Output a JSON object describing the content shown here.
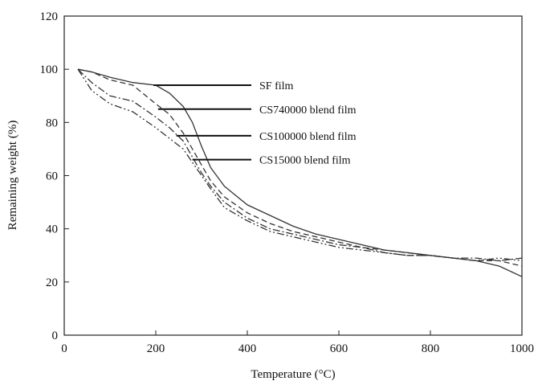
{
  "chart_data": {
    "type": "line",
    "title": "",
    "xlabel": "Temperature (°C)",
    "ylabel": "Remaining weight (%)",
    "xlim": [
      0,
      1000
    ],
    "ylim": [
      0,
      120
    ],
    "xticks": [
      0,
      200,
      400,
      600,
      800,
      1000
    ],
    "yticks": [
      0,
      20,
      40,
      60,
      80,
      100,
      120
    ],
    "grid": false,
    "legend": "annotations with leader lines pointing to curves",
    "series": [
      {
        "name": "SF film",
        "style": "solid",
        "x": [
          30,
          60,
          100,
          150,
          200,
          230,
          260,
          280,
          300,
          320,
          350,
          400,
          450,
          500,
          550,
          600,
          650,
          700,
          750,
          800,
          850,
          900,
          950,
          1000
        ],
        "y": [
          100,
          99,
          97,
          95,
          94,
          91,
          86,
          80,
          71,
          63,
          56,
          49,
          45,
          41,
          38,
          36,
          34,
          32,
          31,
          30,
          29,
          28,
          26,
          22
        ]
      },
      {
        "name": "CS740000 blend film",
        "style": "dashed",
        "x": [
          30,
          60,
          100,
          150,
          200,
          230,
          260,
          280,
          300,
          320,
          350,
          400,
          450,
          500,
          550,
          600,
          650,
          700,
          750,
          800,
          850,
          900,
          950,
          1000
        ],
        "y": [
          100,
          99,
          96,
          94,
          87,
          83,
          76,
          70,
          64,
          58,
          52,
          46,
          42,
          39,
          37,
          35,
          33,
          32,
          31,
          30,
          29,
          28,
          28,
          26
        ]
      },
      {
        "name": "CS100000 blend film",
        "style": "dash-dot",
        "x": [
          30,
          60,
          100,
          150,
          200,
          230,
          260,
          280,
          300,
          320,
          350,
          400,
          450,
          500,
          550,
          600,
          650,
          700,
          750,
          800,
          850,
          900,
          950,
          1000
        ],
        "y": [
          100,
          95,
          90,
          88,
          82,
          78,
          73,
          67,
          61,
          56,
          50,
          44,
          40,
          38,
          36,
          34,
          33,
          31,
          30,
          30,
          29,
          29,
          28,
          29
        ]
      },
      {
        "name": "CS15000 blend film",
        "style": "dash-dot-dot",
        "x": [
          30,
          60,
          100,
          150,
          200,
          230,
          260,
          280,
          300,
          320,
          350,
          400,
          450,
          500,
          550,
          600,
          650,
          700,
          750,
          800,
          850,
          900,
          950,
          1000
        ],
        "y": [
          100,
          92,
          87,
          84,
          78,
          74,
          70,
          65,
          60,
          55,
          48,
          43,
          39,
          37,
          35,
          33,
          32,
          31,
          30,
          30,
          29,
          28,
          29,
          28
        ]
      }
    ],
    "annotations": [
      {
        "text": "SF film",
        "point_x": 195,
        "point_y": 94
      },
      {
        "text": "CS740000 blend film",
        "point_x": 205,
        "point_y": 85
      },
      {
        "text": "CS100000 blend film",
        "point_x": 245,
        "point_y": 75
      },
      {
        "text": "CS15000 blend film",
        "point_x": 280,
        "point_y": 66
      }
    ]
  }
}
